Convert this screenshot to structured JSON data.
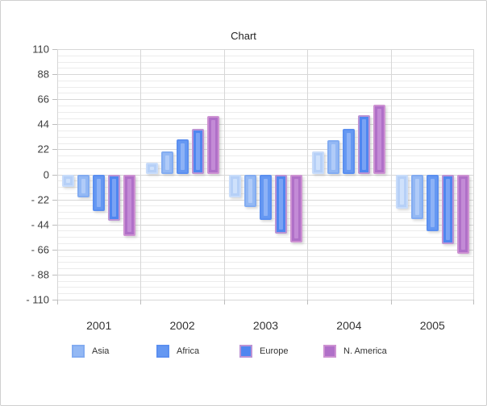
{
  "chart": {
    "title": "Chart",
    "type": "bar",
    "categories": [
      "2001",
      "2002",
      "2003",
      "2004",
      "2005"
    ],
    "series": [
      {
        "name": "",
        "fill": "#b6d0f7",
        "border": "#c8dcfa",
        "highlight": "#cfe1fb",
        "values": [
          -11,
          10,
          -20,
          20,
          -30
        ]
      },
      {
        "name": "Asia",
        "fill": "#93b8f4",
        "border": "#83acf1",
        "highlight": "#b0cbf8",
        "values": [
          -20,
          20,
          -29,
          30,
          -39
        ]
      },
      {
        "name": "Africa",
        "fill": "#6598f2",
        "border": "#5b8ff0",
        "highlight": "#8db2f6",
        "values": [
          -32,
          31,
          -40,
          40,
          -50
        ]
      },
      {
        "name": "Europe",
        "fill": "#4f86f0",
        "border": "#bb93d4",
        "highlight": "#7aa3f4",
        "values": [
          -41,
          40,
          -52,
          52,
          -61
        ]
      },
      {
        "name": "N. America",
        "fill": "#b070c8",
        "border": "#cd92d2",
        "highlight": "#c38bd6",
        "values": [
          -54,
          51,
          -60,
          61,
          -70
        ]
      }
    ],
    "y_axis": {
      "min": -110,
      "max": 110,
      "major_step": 22,
      "minor_step": 5.5,
      "tick_labels": [
        "110",
        "88",
        "66",
        "44",
        "22",
        "0",
        "- 22",
        "- 44",
        "- 66",
        "- 88",
        "- 110"
      ]
    },
    "legend_series": [
      1,
      2,
      3,
      4
    ],
    "grid": {
      "minor_color": "#ececec",
      "major_color": "#d7d7d7"
    }
  }
}
